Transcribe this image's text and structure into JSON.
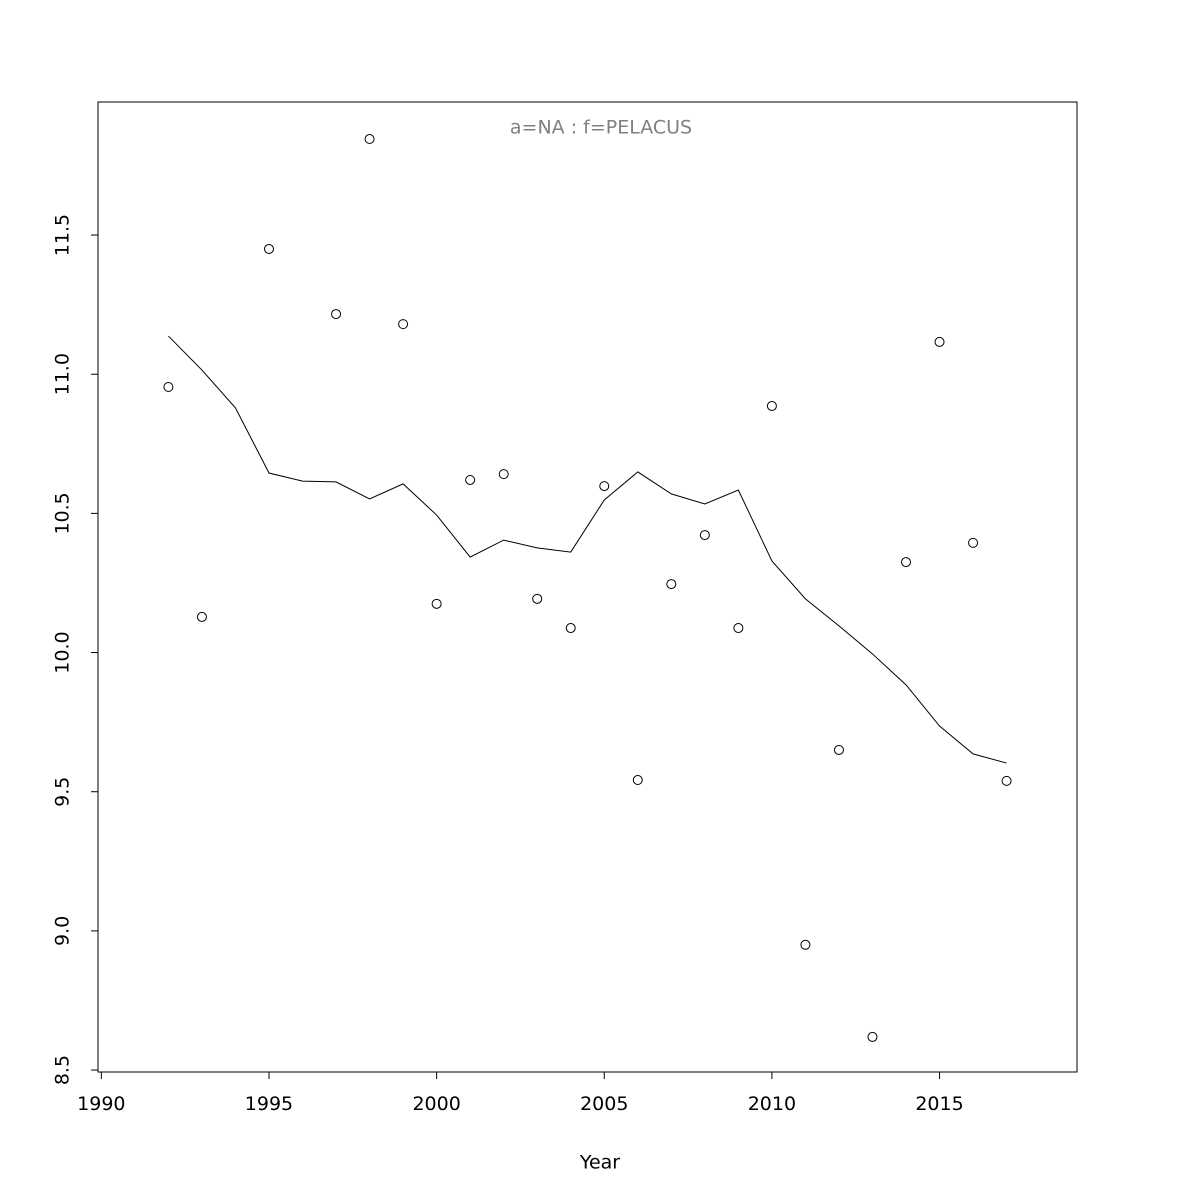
{
  "chart_data": {
    "type": "line",
    "title": "a=NA  :  f=PELACUS",
    "x_label": "Year",
    "x": [
      1992,
      1993,
      1994,
      1995,
      1996,
      1997,
      1998,
      1999,
      2000,
      2001,
      2002,
      2003,
      2004,
      2005,
      2006,
      2007,
      2008,
      2009,
      2010,
      2011,
      2012,
      2013,
      2014,
      2015,
      2016,
      2017
    ],
    "series": [
      {
        "draw": "points",
        "color": "#000000",
        "values": [
          10.954,
          10.128,
          null,
          11.45,
          null,
          11.216,
          11.845,
          11.18,
          10.175,
          10.62,
          10.641,
          10.193,
          10.088,
          10.598,
          9.542,
          10.246,
          10.422,
          10.088,
          10.886,
          8.95,
          9.65,
          8.619,
          10.325,
          11.116,
          10.394,
          9.539
        ]
      },
      {
        "draw": "line",
        "color": "#000000",
        "values": [
          11.137,
          11.015,
          10.879,
          10.645,
          10.616,
          10.613,
          10.552,
          10.606,
          10.494,
          10.343,
          10.404,
          10.376,
          10.361,
          10.548,
          10.649,
          10.57,
          10.534,
          10.584,
          10.329,
          10.193,
          10.096,
          9.995,
          9.884,
          9.736,
          9.636,
          9.603
        ]
      }
    ],
    "xlim": [
      1989.9,
      2019.1
    ],
    "ylim": [
      8.493,
      11.978
    ],
    "xticks": [
      1990,
      1995,
      2000,
      2005,
      2010,
      2015
    ],
    "yticks": [
      8.5,
      {
        "value": 9,
        "label": "9.0"
      },
      9.5,
      {
        "value": 10,
        "label": "10.0"
      },
      10.5,
      {
        "value": 11,
        "label": "11.0"
      },
      11.5
    ],
    "grid": false
  }
}
